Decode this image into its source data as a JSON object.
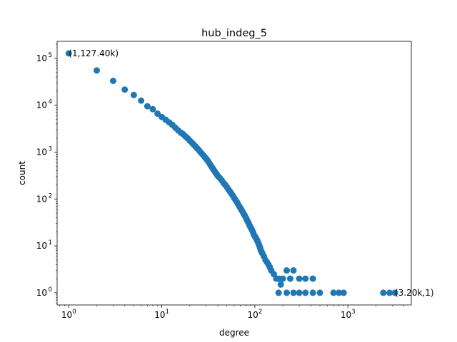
{
  "chart_data": {
    "type": "scatter",
    "title": "hub_indeg_5",
    "xlabel": "degree",
    "ylabel": "count",
    "xscale": "log",
    "yscale": "log",
    "xlim": [
      0.75,
      4800
    ],
    "ylim": [
      0.55,
      230000
    ],
    "grid": false,
    "color": "#1f77b4",
    "x_ticks": [
      {
        "base": "10",
        "exp": "0",
        "value": 1
      },
      {
        "base": "10",
        "exp": "1",
        "value": 10
      },
      {
        "base": "10",
        "exp": "2",
        "value": 100
      },
      {
        "base": "10",
        "exp": "3",
        "value": 1000
      }
    ],
    "y_ticks": [
      {
        "base": "10",
        "exp": "0",
        "value": 1
      },
      {
        "base": "10",
        "exp": "1",
        "value": 10
      },
      {
        "base": "10",
        "exp": "2",
        "value": 100
      },
      {
        "base": "10",
        "exp": "3",
        "value": 1000
      },
      {
        "base": "10",
        "exp": "4",
        "value": 10000
      },
      {
        "base": "10",
        "exp": "5",
        "value": 100000
      }
    ],
    "annotations": [
      {
        "text": "(1,127.40k)",
        "x": 1,
        "y": 127400
      },
      {
        "text": "(3.20k,1)",
        "x": 3200,
        "y": 1
      }
    ],
    "points": [
      [
        1,
        127400
      ],
      [
        2,
        55000
      ],
      [
        3,
        33000
      ],
      [
        4,
        21500
      ],
      [
        5,
        16500
      ],
      [
        6,
        12500
      ],
      [
        7,
        9500
      ],
      [
        8,
        8200
      ],
      [
        9,
        6600
      ],
      [
        10,
        5600
      ],
      [
        11,
        4900
      ],
      [
        12,
        4300
      ],
      [
        13,
        3800
      ],
      [
        14,
        3300
      ],
      [
        15,
        2900
      ],
      [
        16,
        2600
      ],
      [
        17,
        2400
      ],
      [
        18,
        2150
      ],
      [
        19,
        1950
      ],
      [
        20,
        1750
      ],
      [
        21,
        1600
      ],
      [
        22,
        1450
      ],
      [
        23,
        1320
      ],
      [
        24,
        1200
      ],
      [
        25,
        1100
      ],
      [
        26,
        1000
      ],
      [
        27,
        920
      ],
      [
        28,
        850
      ],
      [
        29,
        780
      ],
      [
        30,
        720
      ],
      [
        31,
        660
      ],
      [
        32,
        600
      ],
      [
        33,
        550
      ],
      [
        34,
        500
      ],
      [
        35,
        460
      ],
      [
        36,
        420
      ],
      [
        37,
        390
      ],
      [
        38,
        360
      ],
      [
        39,
        335
      ],
      [
        40,
        310
      ],
      [
        42,
        280
      ],
      [
        44,
        250
      ],
      [
        46,
        220
      ],
      [
        48,
        200
      ],
      [
        50,
        180
      ],
      [
        52,
        160
      ],
      [
        54,
        145
      ],
      [
        56,
        130
      ],
      [
        58,
        118
      ],
      [
        60,
        105
      ],
      [
        62,
        95
      ],
      [
        64,
        86
      ],
      [
        66,
        78
      ],
      [
        68,
        70
      ],
      [
        70,
        64
      ],
      [
        72,
        58
      ],
      [
        74,
        53
      ],
      [
        76,
        48
      ],
      [
        78,
        44
      ],
      [
        80,
        40
      ],
      [
        82,
        36
      ],
      [
        84,
        33
      ],
      [
        86,
        30
      ],
      [
        88,
        27
      ],
      [
        90,
        25
      ],
      [
        92,
        23
      ],
      [
        94,
        21
      ],
      [
        96,
        19
      ],
      [
        98,
        17
      ],
      [
        100,
        16
      ],
      [
        102,
        15
      ],
      [
        104,
        14
      ],
      [
        106,
        13
      ],
      [
        108,
        12
      ],
      [
        110,
        11
      ],
      [
        112,
        10
      ],
      [
        114,
        9
      ],
      [
        116,
        8
      ],
      [
        118,
        7.5
      ],
      [
        120,
        7
      ],
      [
        125,
        6
      ],
      [
        130,
        5
      ],
      [
        135,
        4.5
      ],
      [
        140,
        4
      ],
      [
        145,
        3.5
      ],
      [
        150,
        3
      ],
      [
        160,
        2.5
      ],
      [
        170,
        2
      ],
      [
        180,
        2
      ],
      [
        190,
        1.5
      ],
      [
        200,
        2
      ],
      [
        220,
        3
      ],
      [
        240,
        2
      ],
      [
        260,
        3
      ],
      [
        300,
        2
      ],
      [
        350,
        2
      ],
      [
        420,
        2
      ],
      [
        180,
        1
      ],
      [
        220,
        1
      ],
      [
        260,
        1
      ],
      [
        300,
        1
      ],
      [
        350,
        1
      ],
      [
        420,
        1
      ],
      [
        500,
        1
      ],
      [
        700,
        1
      ],
      [
        800,
        1
      ],
      [
        900,
        1
      ],
      [
        2400,
        1
      ],
      [
        2800,
        1
      ],
      [
        3200,
        1
      ]
    ]
  }
}
